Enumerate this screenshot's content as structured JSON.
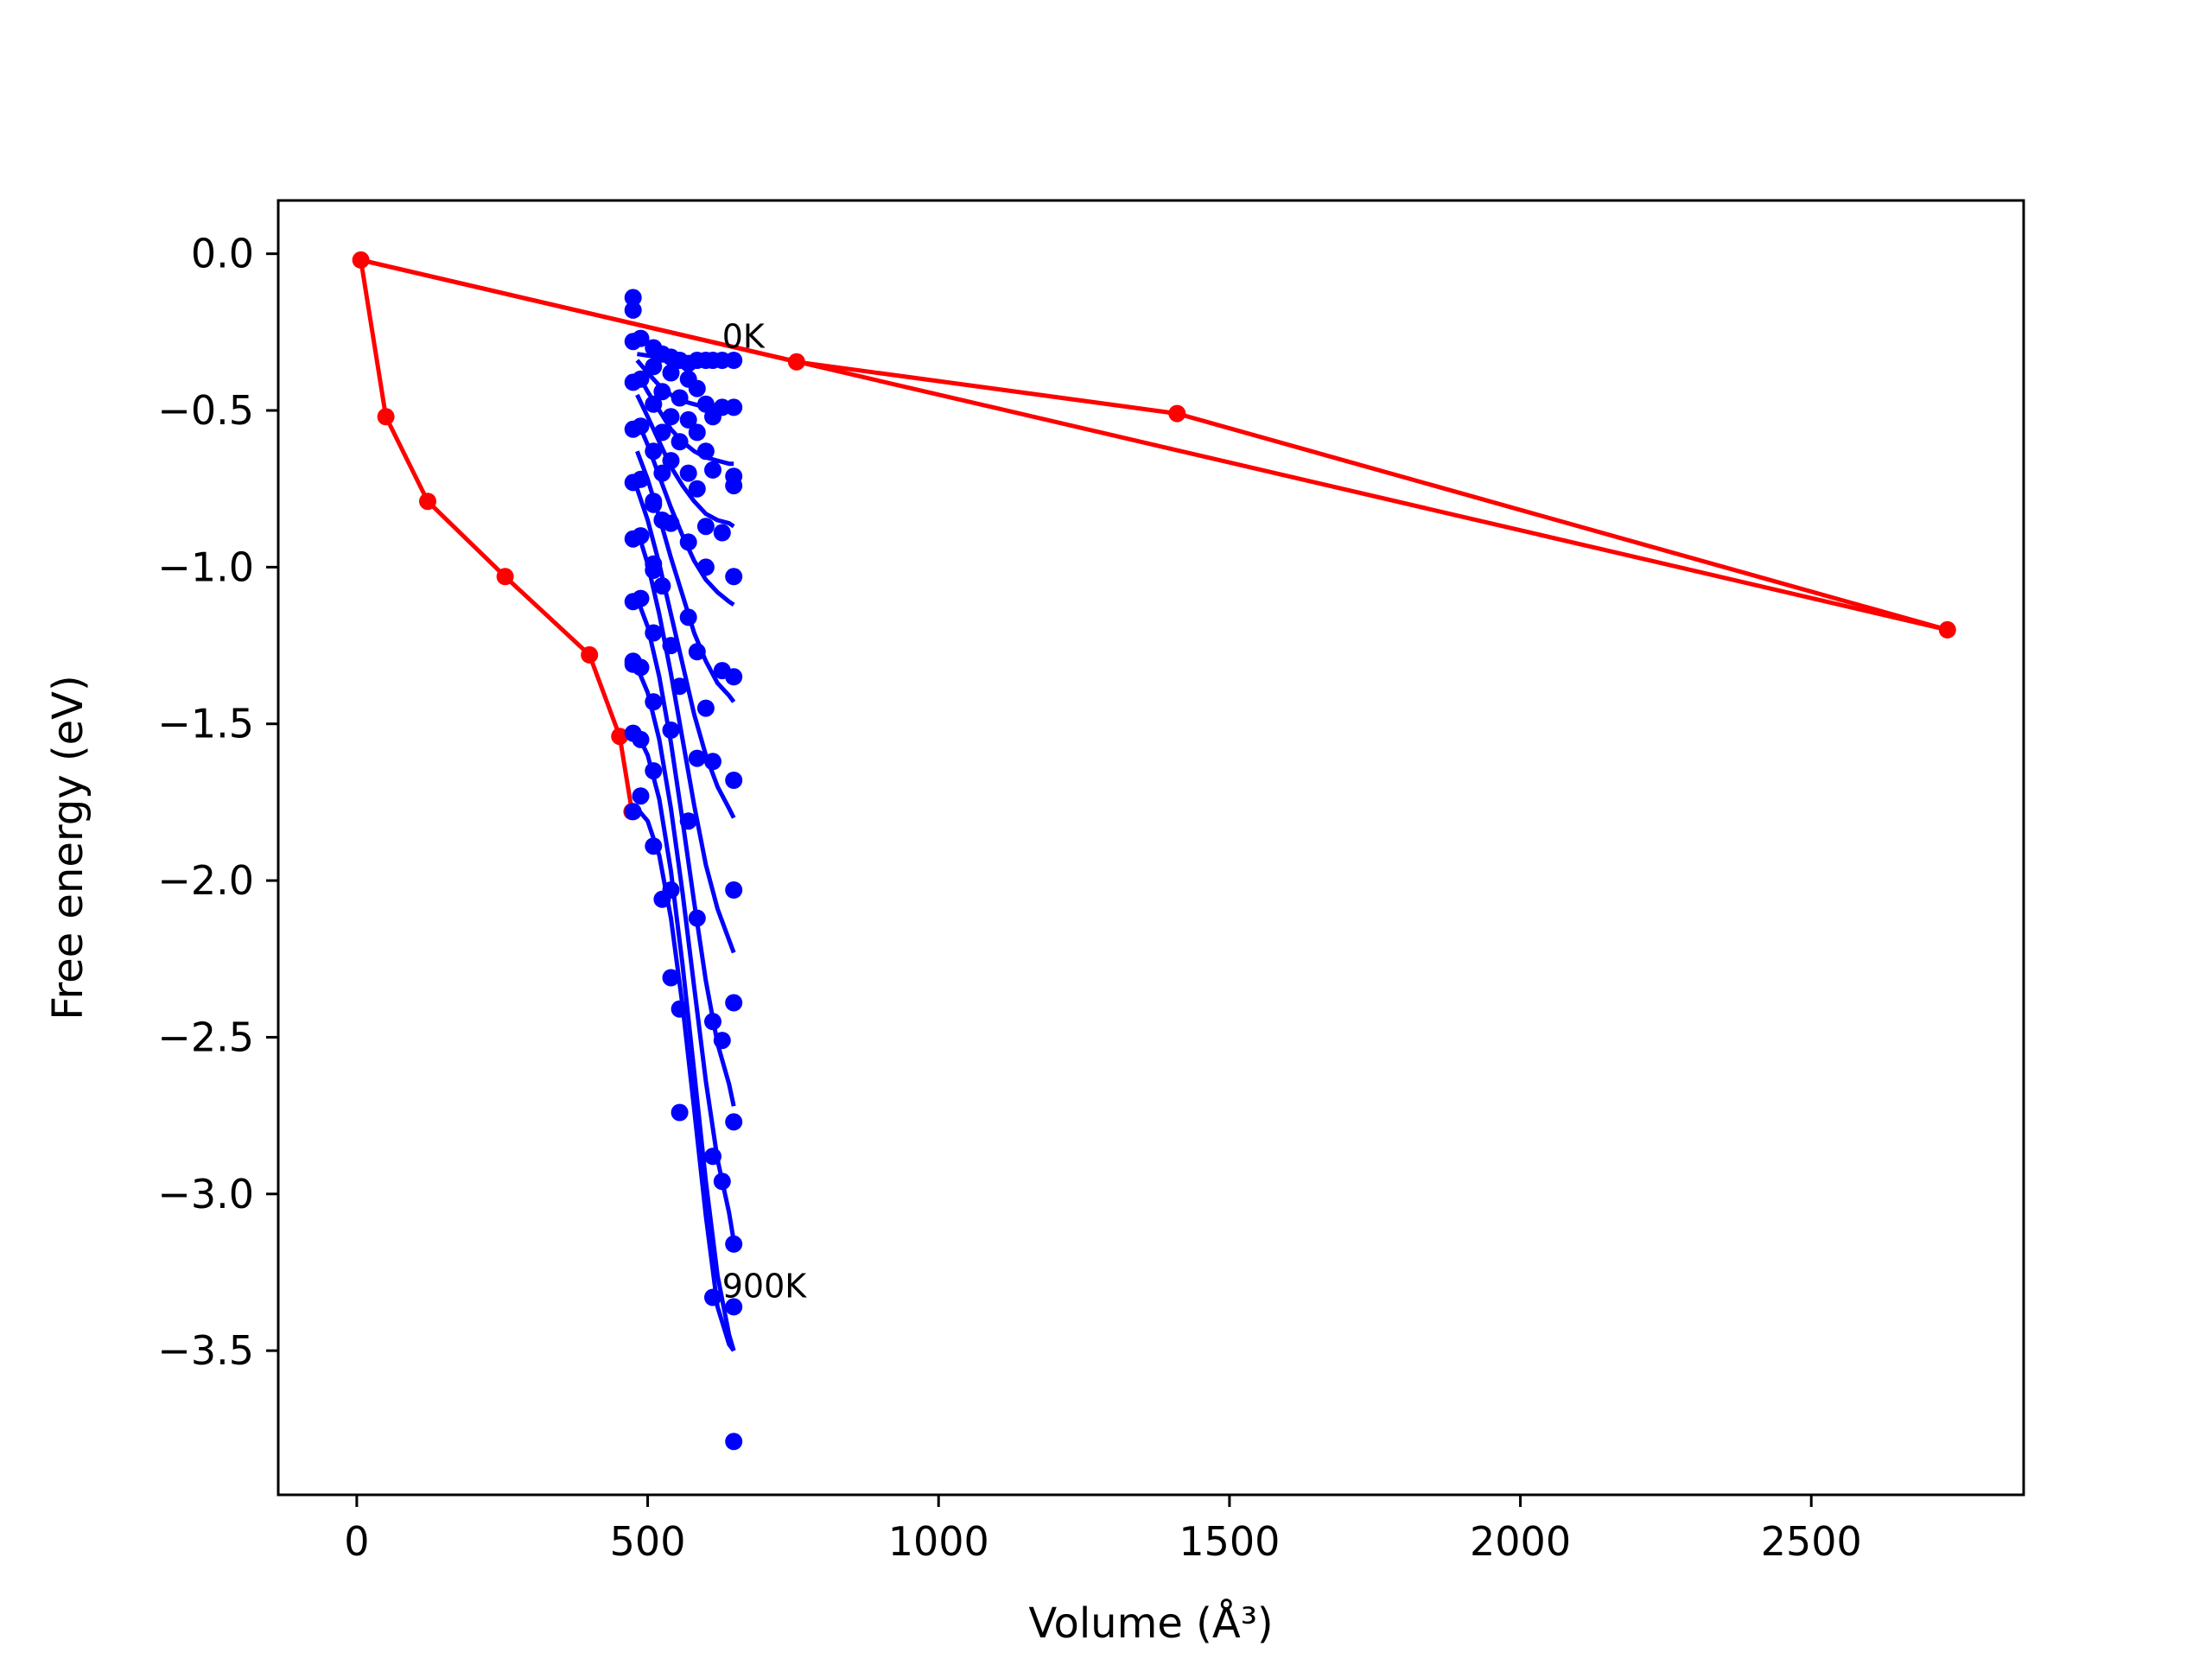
{
  "chart_data": {
    "type": "line",
    "xlabel": "Volume (Å³)",
    "ylabel": "Free energy (eV)",
    "xlim": [
      -135,
      2865
    ],
    "ylim": [
      -3.96,
      0.17
    ],
    "xticks": [
      0,
      500,
      1000,
      1500,
      2000,
      2500
    ],
    "xtick_labels": [
      "0",
      "500",
      "1000",
      "1500",
      "2000",
      "2500"
    ],
    "yticks": [
      0.0,
      -0.5,
      -1.0,
      -1.5,
      -2.0,
      -2.5,
      -3.0,
      -3.5
    ],
    "ytick_labels": [
      "0.0",
      "−0.5",
      "−1.0",
      "−1.5",
      "−2.0",
      "−2.5",
      "−3.0",
      "−3.5"
    ],
    "grid": false,
    "annotations": [
      {
        "text": "0K",
        "x": 628,
        "y": -0.3
      },
      {
        "text": "900K",
        "x": 628,
        "y": -3.33
      }
    ],
    "colors": {
      "path": "#ff0000",
      "isotherms": "#0000ff",
      "axes": "#000000"
    },
    "series": [
      {
        "color": "#ff0000",
        "style": "line-with-markers",
        "x": [
          2734,
          1410,
          756,
          7,
          50,
          122,
          255,
          400,
          452,
          473
        ],
        "y": [
          -1.2,
          -0.51,
          -0.345,
          -0.02,
          -0.52,
          -0.79,
          -1.03,
          -1.28,
          -1.54,
          -1.78
        ]
      },
      {
        "color": "#ff0000",
        "style": "line",
        "x": [
          7,
          2734
        ],
        "y": [
          -0.02,
          -1.2
        ]
      },
      {
        "color": "#0000ff",
        "style": "markers",
        "x": [
          475,
          475,
          475,
          475,
          475,
          475,
          475,
          475,
          475,
          475,
          475,
          475,
          488,
          488,
          488,
          488,
          488,
          488,
          488,
          488,
          488,
          510,
          510,
          510,
          510,
          510,
          510,
          510,
          510,
          510,
          510,
          510,
          510,
          525,
          525,
          525,
          525,
          525,
          525,
          525,
          540,
          540,
          540,
          540,
          540,
          540,
          540,
          540,
          540,
          555,
          555,
          555,
          555,
          555,
          555,
          570,
          570,
          570,
          570,
          570,
          570,
          570,
          585,
          585,
          585,
          585,
          585,
          585,
          585,
          600,
          600,
          600,
          600,
          600,
          600,
          612,
          612,
          612,
          612,
          612,
          612,
          612,
          628,
          628,
          628,
          628,
          628,
          628,
          648,
          648,
          648,
          648,
          648,
          648,
          648,
          648,
          648,
          648,
          648,
          648,
          648
        ],
        "y": [
          -0.14,
          -0.18,
          -0.28,
          -0.41,
          -0.56,
          -0.73,
          -0.91,
          -1.11,
          -1.31,
          -1.53,
          -1.78,
          -1.3,
          -0.27,
          -0.4,
          -0.55,
          -0.72,
          -0.9,
          -1.1,
          -1.32,
          -1.55,
          -1.73,
          -0.3,
          -0.36,
          -0.48,
          -0.63,
          -0.8,
          -0.99,
          -1.21,
          -1.43,
          -1.65,
          -1.89,
          -1.01,
          -0.79,
          -0.32,
          -0.44,
          -0.57,
          -0.7,
          -2.06,
          -0.85,
          -1.06,
          -0.33,
          -0.38,
          -0.52,
          -0.66,
          -0.86,
          -1.25,
          -1.52,
          -2.03,
          -2.31,
          -0.34,
          -0.46,
          -0.6,
          -1.38,
          -2.41,
          -2.74,
          -0.35,
          -0.4,
          -0.53,
          -0.7,
          -0.92,
          -1.16,
          -1.81,
          -0.34,
          -0.43,
          -0.57,
          -0.75,
          -1.27,
          -1.61,
          -2.12,
          -0.34,
          -0.48,
          -0.63,
          -0.87,
          -1.0,
          -1.45,
          -0.34,
          -0.52,
          -0.69,
          -1.62,
          -2.45,
          -2.88,
          -3.33,
          -0.34,
          -0.49,
          -0.89,
          -1.33,
          -2.51,
          -2.96,
          -0.34,
          -0.49,
          -0.74,
          -1.03,
          -1.35,
          -1.68,
          -2.03,
          -2.39,
          -2.77,
          -3.16,
          -3.36,
          -3.79,
          -0.71
        ]
      }
    ],
    "isotherm_curves": [
      {
        "label": "0K",
        "x": [
          482,
          500,
          520,
          540,
          560,
          580,
          600,
          620,
          640,
          648
        ],
        "y": [
          -0.32,
          -0.325,
          -0.33,
          -0.335,
          -0.34,
          -0.343,
          -0.345,
          -0.347,
          -0.348,
          -0.35
        ]
      },
      {
        "x": [
          482,
          500,
          520,
          540,
          560,
          580,
          600,
          620,
          640,
          648
        ],
        "y": [
          -0.34,
          -0.38,
          -0.42,
          -0.45,
          -0.47,
          -0.48,
          -0.49,
          -0.49,
          -0.5,
          -0.5
        ]
      },
      {
        "x": [
          482,
          500,
          520,
          540,
          560,
          580,
          600,
          620,
          640,
          648
        ],
        "y": [
          -0.38,
          -0.44,
          -0.5,
          -0.56,
          -0.6,
          -0.63,
          -0.65,
          -0.66,
          -0.67,
          -0.67
        ]
      },
      {
        "x": [
          482,
          500,
          520,
          540,
          560,
          580,
          600,
          620,
          640,
          648
        ],
        "y": [
          -0.45,
          -0.52,
          -0.6,
          -0.68,
          -0.74,
          -0.79,
          -0.83,
          -0.85,
          -0.86,
          -0.87
        ]
      },
      {
        "x": [
          482,
          500,
          520,
          540,
          560,
          580,
          600,
          620,
          640,
          648
        ],
        "y": [
          -0.53,
          -0.61,
          -0.71,
          -0.81,
          -0.9,
          -0.98,
          -1.04,
          -1.08,
          -1.11,
          -1.12
        ]
      },
      {
        "x": [
          482,
          500,
          520,
          540,
          560,
          580,
          600,
          620,
          640,
          648
        ],
        "y": [
          -0.63,
          -0.72,
          -0.84,
          -0.97,
          -1.09,
          -1.21,
          -1.3,
          -1.37,
          -1.41,
          -1.43
        ]
      },
      {
        "x": [
          482,
          500,
          520,
          540,
          560,
          580,
          600,
          620,
          640,
          648
        ],
        "y": [
          -0.75,
          -0.85,
          -0.99,
          -1.15,
          -1.31,
          -1.47,
          -1.6,
          -1.7,
          -1.77,
          -1.8
        ]
      },
      {
        "x": [
          482,
          500,
          520,
          540,
          560,
          580,
          600,
          620,
          640,
          648
        ],
        "y": [
          -0.88,
          -0.99,
          -1.15,
          -1.34,
          -1.55,
          -1.76,
          -1.95,
          -2.09,
          -2.19,
          -2.23
        ]
      },
      {
        "x": [
          482,
          500,
          520,
          540,
          560,
          580,
          600,
          620,
          640,
          648
        ],
        "y": [
          -1.1,
          -1.19,
          -1.35,
          -1.56,
          -1.81,
          -2.07,
          -2.32,
          -2.52,
          -2.65,
          -2.72
        ]
      },
      {
        "x": [
          482,
          500,
          520,
          540,
          560,
          580,
          600,
          620,
          640,
          648
        ],
        "y": [
          -1.32,
          -1.4,
          -1.55,
          -1.77,
          -2.04,
          -2.34,
          -2.64,
          -2.89,
          -3.06,
          -3.15
        ]
      },
      {
        "x": [
          482,
          500,
          520,
          540,
          560,
          580,
          600,
          620,
          640,
          648
        ],
        "y": [
          -1.53,
          -1.6,
          -1.74,
          -1.97,
          -2.27,
          -2.61,
          -2.96,
          -3.26,
          -3.45,
          -3.5
        ]
      },
      {
        "label": "900K",
        "x": [
          482,
          500,
          520,
          540,
          560,
          580,
          600,
          620,
          640,
          648
        ],
        "y": [
          -1.77,
          -1.81,
          -1.92,
          -2.12,
          -2.4,
          -2.73,
          -3.07,
          -3.36,
          -3.48,
          -3.5
        ]
      }
    ]
  }
}
